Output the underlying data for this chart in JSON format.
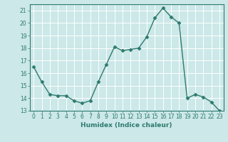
{
  "title": "",
  "xlabel": "Humidex (Indice chaleur)",
  "ylabel": "",
  "x_values": [
    0,
    1,
    2,
    3,
    4,
    5,
    6,
    7,
    8,
    9,
    10,
    11,
    12,
    13,
    14,
    15,
    16,
    17,
    18,
    19,
    20,
    21,
    22,
    23
  ],
  "y_values": [
    16.5,
    15.3,
    14.3,
    14.2,
    14.2,
    13.8,
    13.6,
    13.8,
    15.3,
    16.7,
    18.1,
    17.8,
    17.9,
    18.0,
    18.9,
    20.4,
    21.2,
    20.5,
    20.0,
    14.0,
    14.3,
    14.1,
    13.7,
    13.0
  ],
  "line_color": "#2d7a6e",
  "marker": "D",
  "marker_size": 2.5,
  "bg_color": "#cce8e8",
  "grid_color": "#ffffff",
  "ylim": [
    13,
    21.5
  ],
  "xlim": [
    -0.5,
    23.5
  ],
  "yticks": [
    13,
    14,
    15,
    16,
    17,
    18,
    19,
    20,
    21
  ],
  "xticks": [
    0,
    1,
    2,
    3,
    4,
    5,
    6,
    7,
    8,
    9,
    10,
    11,
    12,
    13,
    14,
    15,
    16,
    17,
    18,
    19,
    20,
    21,
    22,
    23
  ],
  "tick_fontsize": 5.5,
  "xlabel_fontsize": 6.5,
  "line_width": 1.0
}
